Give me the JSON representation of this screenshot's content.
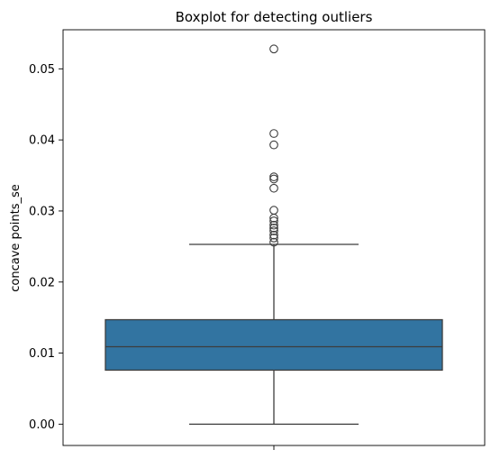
{
  "chart_data": {
    "type": "box",
    "title": "Boxplot for detecting outliers",
    "xlabel": "",
    "ylabel": "concave points_se",
    "ylim": [
      -0.003,
      0.0555
    ],
    "yticks": [
      0.0,
      0.01,
      0.02,
      0.03,
      0.04,
      0.05
    ],
    "ytick_labels": [
      "0.00",
      "0.01",
      "0.02",
      "0.03",
      "0.04",
      "0.05"
    ],
    "grid": false,
    "box": {
      "whisker_low": 0.0,
      "q1": 0.0076,
      "median": 0.0109,
      "q3": 0.0147,
      "whisker_high": 0.0253
    },
    "outliers": [
      0.0528,
      0.0409,
      0.0393,
      0.0348,
      0.0345,
      0.0332,
      0.0301,
      0.029,
      0.0286,
      0.028,
      0.0276,
      0.0272,
      0.0266,
      0.0262,
      0.0256
    ],
    "colors": {
      "box_fill": "#3274a1",
      "lines": "#3d3d3d",
      "axes": "#000000"
    }
  }
}
